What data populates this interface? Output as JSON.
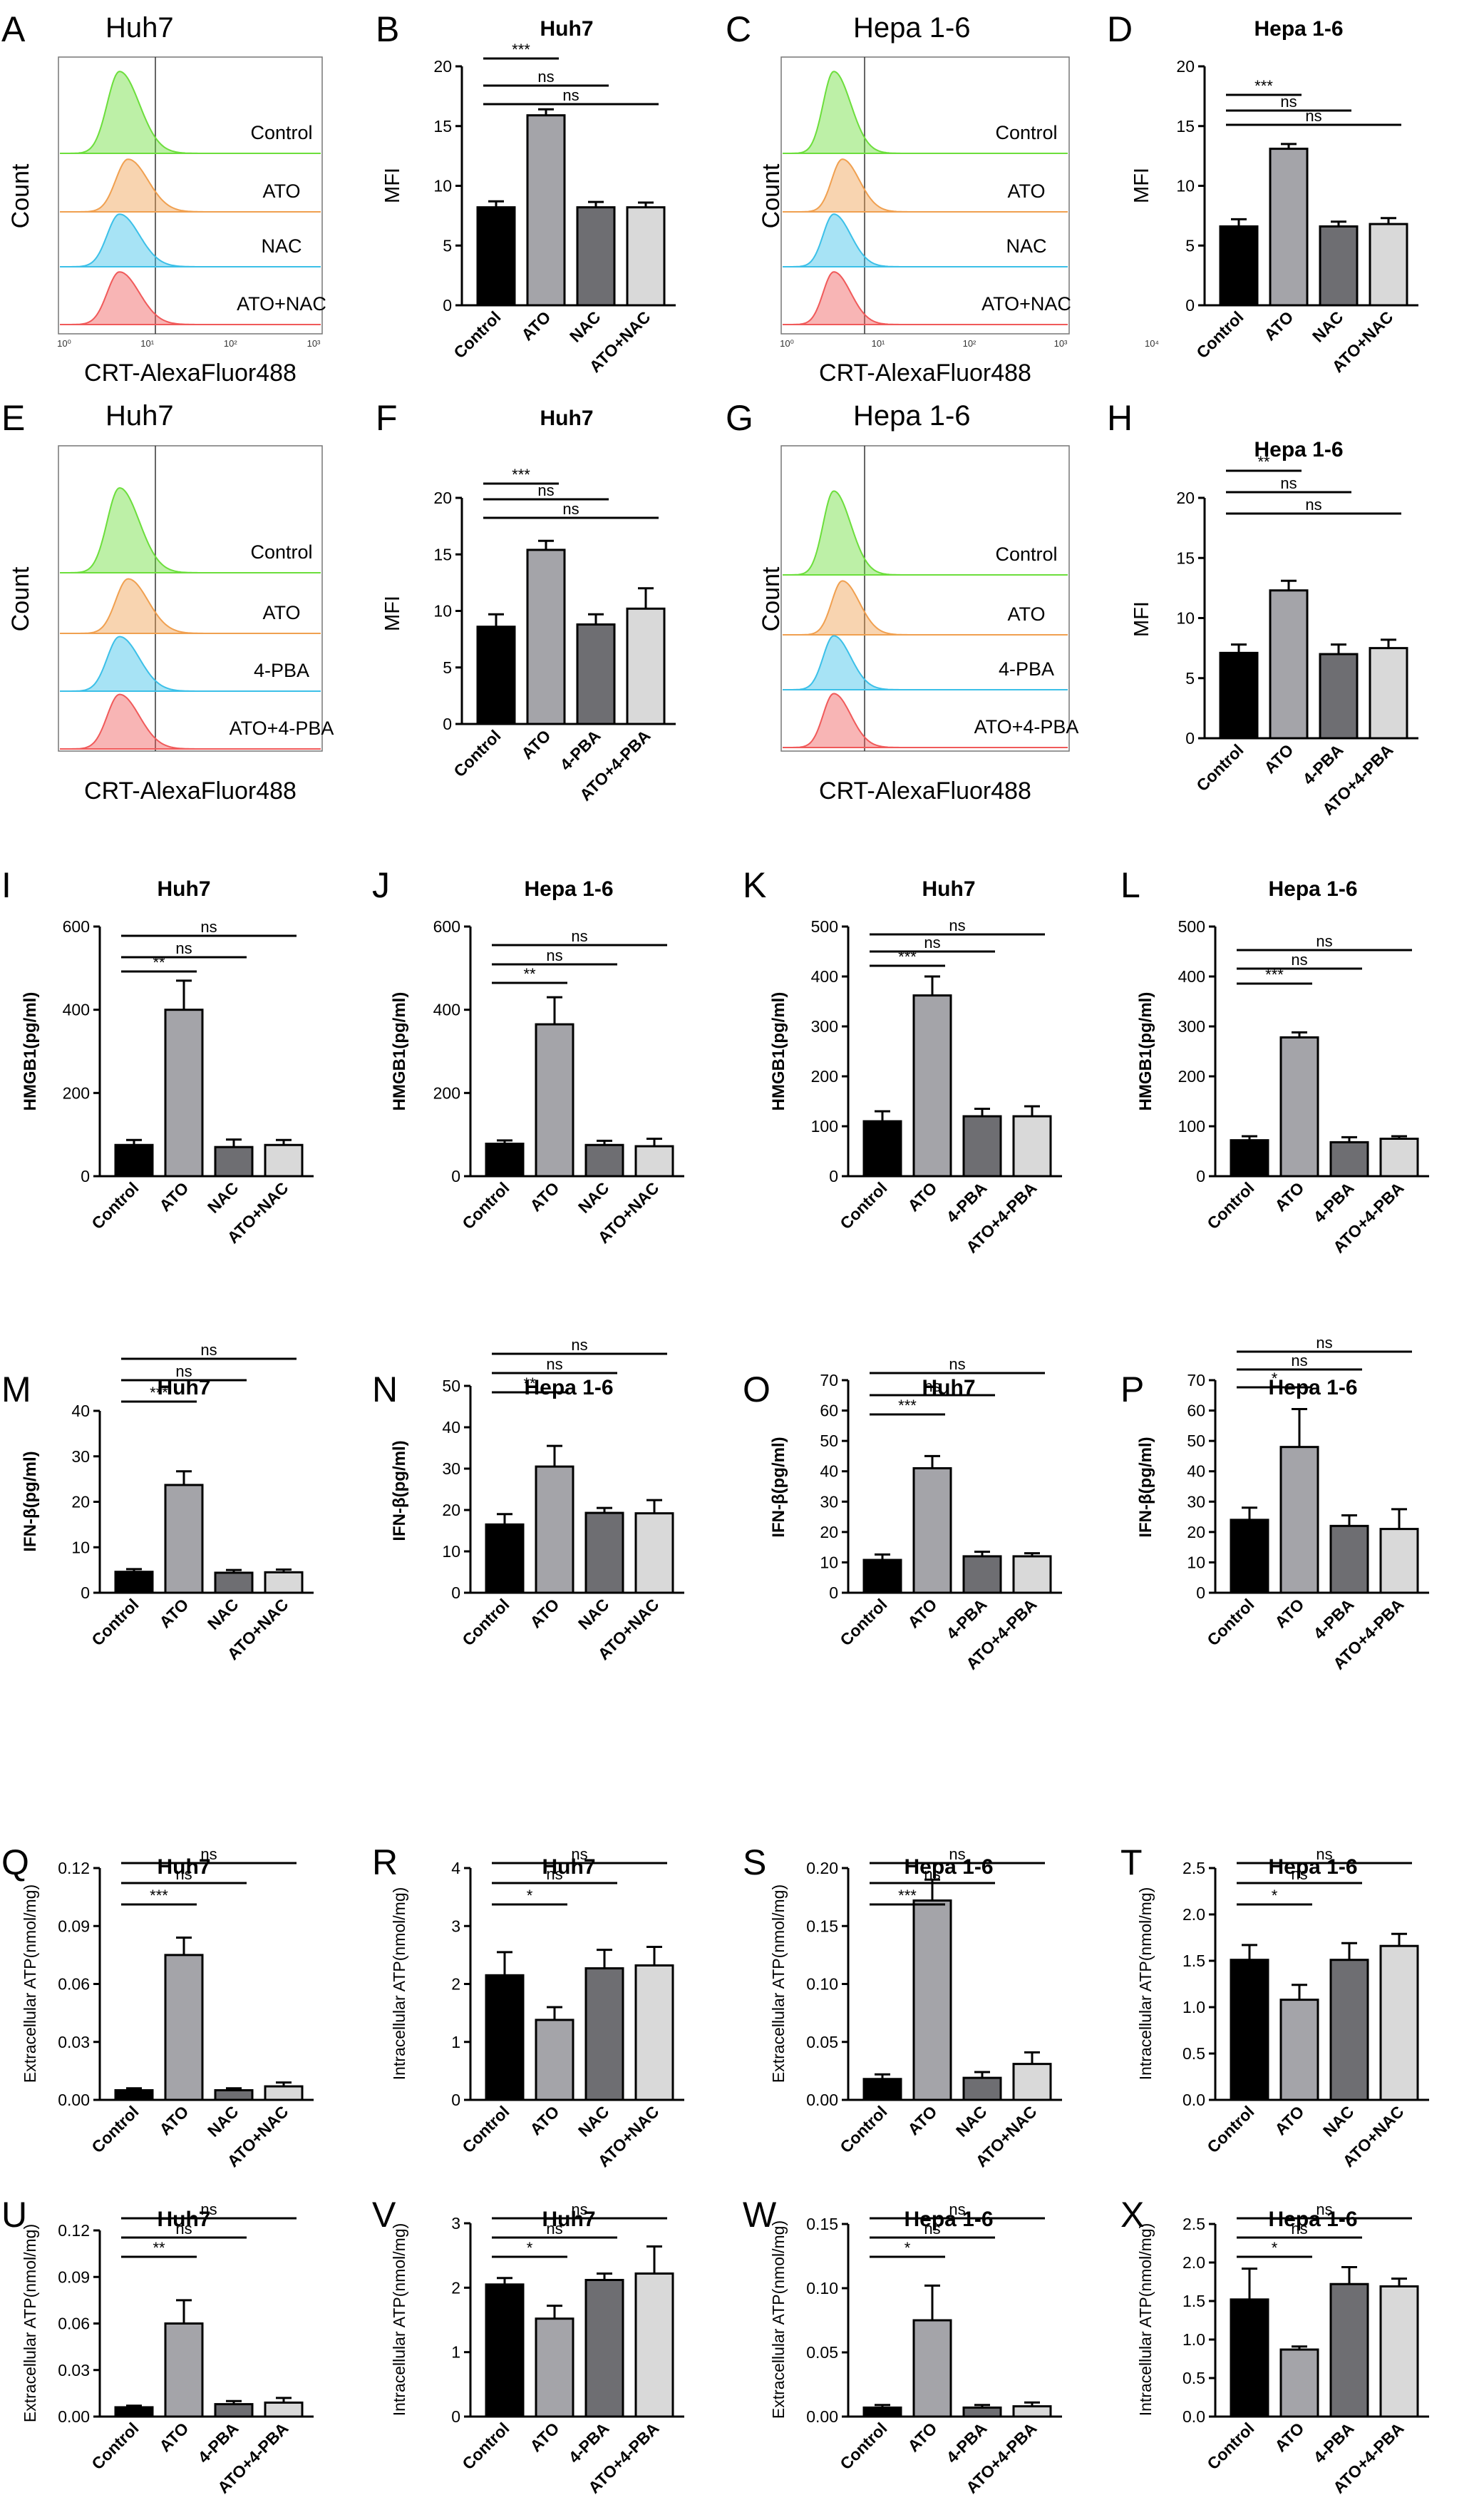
{
  "chart_data": [
    {
      "panel": "A",
      "type": "histogram",
      "title": "Huh7",
      "xlabel": "CRT-AlexaFluor488",
      "ylabel": "Count",
      "x_ticks": [
        "10⁰",
        "10¹",
        "10²",
        "10³"
      ],
      "series": [
        {
          "name": "Control",
          "color": "#6cde3c",
          "peak": 0.45
        },
        {
          "name": "ATO",
          "color": "#f0a050",
          "peak": 0.49
        },
        {
          "name": "NAC",
          "color": "#3cc0e8",
          "peak": 0.42
        },
        {
          "name": "ATO+NAC",
          "color": "#f05a5a",
          "peak": 0.45
        }
      ]
    },
    {
      "panel": "B",
      "type": "bar",
      "title": "Huh7",
      "ylabel": "MFI",
      "ylim": [
        0,
        20
      ],
      "yticks": [
        0,
        5,
        10,
        15,
        20
      ],
      "categories": [
        "Control",
        "ATO",
        "NAC",
        "ATO+NAC"
      ],
      "values": [
        8.2,
        15.9,
        8.2,
        8.2
      ],
      "errors": [
        0.5,
        0.5,
        0.45,
        0.4
      ],
      "sig": [
        {
          "label": "***",
          "to": 1
        },
        {
          "label": "ns",
          "to": 2
        },
        {
          "label": "ns",
          "to": 3
        }
      ]
    },
    {
      "panel": "C",
      "type": "histogram",
      "title": "Hepa 1-6",
      "xlabel": "CRT-AlexaFluor488",
      "ylabel": "Count",
      "x_ticks": [
        "10⁰",
        "10¹",
        "10²",
        "10³",
        "10⁴"
      ],
      "series": [
        {
          "name": "Control",
          "color": "#6cde3c",
          "peak": 0.35
        },
        {
          "name": "ATO",
          "color": "#f0a050",
          "peak": 0.4
        },
        {
          "name": "NAC",
          "color": "#3cc0e8",
          "peak": 0.35
        },
        {
          "name": "ATO+NAC",
          "color": "#f05a5a",
          "peak": 0.35
        }
      ]
    },
    {
      "panel": "D",
      "type": "bar",
      "title": "Hepa 1-6",
      "ylabel": "MFI",
      "ylim": [
        0,
        20
      ],
      "yticks": [
        0,
        5,
        10,
        15,
        20
      ],
      "categories": [
        "Control",
        "ATO",
        "NAC",
        "ATO+NAC"
      ],
      "values": [
        6.6,
        13.1,
        6.6,
        6.8
      ],
      "errors": [
        0.6,
        0.4,
        0.4,
        0.5
      ],
      "sig": [
        {
          "label": "***",
          "to": 1
        },
        {
          "label": "ns",
          "to": 2
        },
        {
          "label": "ns",
          "to": 3
        }
      ]
    },
    {
      "panel": "E",
      "type": "histogram",
      "title": "Huh7",
      "xlabel": "CRT-AlexaFluor488",
      "ylabel": "Count",
      "x_ticks": [],
      "series": [
        {
          "name": "Control",
          "color": "#6cde3c",
          "peak": 0.45
        },
        {
          "name": "ATO",
          "color": "#f0a050",
          "peak": 0.5
        },
        {
          "name": "4-PBA",
          "color": "#3cc0e8",
          "peak": 0.45
        },
        {
          "name": "ATO+4-PBA",
          "color": "#f05a5a",
          "peak": 0.45
        }
      ]
    },
    {
      "panel": "F",
      "type": "bar",
      "title": "Huh7",
      "ylabel": "MFI",
      "ylim": [
        0,
        20
      ],
      "yticks": [
        0,
        5,
        10,
        15,
        20
      ],
      "categories": [
        "Control",
        "ATO",
        "4-PBA",
        "ATO+4-PBA"
      ],
      "values": [
        8.6,
        15.4,
        8.8,
        10.2
      ],
      "errors": [
        1.1,
        0.8,
        0.9,
        1.8
      ],
      "sig": [
        {
          "label": "***",
          "to": 1
        },
        {
          "label": "ns",
          "to": 2
        },
        {
          "label": "ns",
          "to": 3
        }
      ]
    },
    {
      "panel": "G",
      "type": "histogram",
      "title": "Hepa 1-6",
      "xlabel": "CRT-AlexaFluor488",
      "ylabel": "Count",
      "x_ticks": [],
      "series": [
        {
          "name": "Control",
          "color": "#6cde3c",
          "peak": 0.42
        },
        {
          "name": "ATO",
          "color": "#f0a050",
          "peak": 0.48
        },
        {
          "name": "4-PBA",
          "color": "#3cc0e8",
          "peak": 0.42
        },
        {
          "name": "ATO+4-PBA",
          "color": "#f05a5a",
          "peak": 0.42
        }
      ]
    },
    {
      "panel": "H",
      "type": "bar",
      "title": "Hepa 1-6",
      "ylabel": "MFI",
      "ylim": [
        0,
        20
      ],
      "yticks": [
        0,
        5,
        10,
        15,
        20
      ],
      "categories": [
        "Control",
        "ATO",
        "4-PBA",
        "ATO+4-PBA"
      ],
      "values": [
        7.1,
        12.3,
        7.0,
        7.5
      ],
      "errors": [
        0.7,
        0.8,
        0.8,
        0.7
      ],
      "sig": [
        {
          "label": "**",
          "to": 1
        },
        {
          "label": "ns",
          "to": 2
        },
        {
          "label": "ns",
          "to": 3
        }
      ]
    },
    {
      "panel": "I",
      "type": "bar",
      "title": "Huh7",
      "ylabel": "HMGB1(pg/ml)",
      "ylim": [
        0,
        600
      ],
      "yticks": [
        0,
        200,
        400,
        600
      ],
      "categories": [
        "Control",
        "ATO",
        "NAC",
        "ATO+NAC"
      ],
      "values": [
        75,
        400,
        70,
        75
      ],
      "errors": [
        12,
        70,
        18,
        12
      ],
      "sig": [
        {
          "label": "**",
          "to": 1
        },
        {
          "label": "ns",
          "to": 2
        },
        {
          "label": "ns",
          "to": 3
        }
      ]
    },
    {
      "panel": "J",
      "type": "bar",
      "title": "Hepa 1-6",
      "ylabel": "HMGB1(pg/ml)",
      "ylim": [
        0,
        600
      ],
      "yticks": [
        0,
        200,
        400,
        600
      ],
      "categories": [
        "Control",
        "ATO",
        "NAC",
        "ATO+NAC"
      ],
      "values": [
        78,
        365,
        75,
        72
      ],
      "errors": [
        8,
        65,
        10,
        18
      ],
      "sig": [
        {
          "label": "**",
          "to": 1
        },
        {
          "label": "ns",
          "to": 2
        },
        {
          "label": "ns",
          "to": 3
        }
      ]
    },
    {
      "panel": "K",
      "type": "bar",
      "title": "Huh7",
      "ylabel": "HMGB1(pg/ml)",
      "ylim": [
        0,
        500
      ],
      "yticks": [
        0,
        100,
        200,
        300,
        400,
        500
      ],
      "categories": [
        "Control",
        "ATO",
        "4-PBA",
        "ATO+4-PBA"
      ],
      "values": [
        110,
        362,
        120,
        120
      ],
      "errors": [
        20,
        38,
        15,
        20
      ],
      "sig": [
        {
          "label": "***",
          "to": 1
        },
        {
          "label": "ns",
          "to": 2
        },
        {
          "label": "ns",
          "to": 3
        }
      ]
    },
    {
      "panel": "L",
      "type": "bar",
      "title": "Hepa 1-6",
      "ylabel": "HMGB1(pg/ml)",
      "ylim": [
        0,
        500
      ],
      "yticks": [
        0,
        100,
        200,
        300,
        400,
        500
      ],
      "categories": [
        "Control",
        "ATO",
        "4-PBA",
        "ATO+4-PBA"
      ],
      "values": [
        72,
        278,
        68,
        75
      ],
      "errors": [
        8,
        10,
        10,
        5
      ],
      "sig": [
        {
          "label": "***",
          "to": 1
        },
        {
          "label": "ns",
          "to": 2
        },
        {
          "label": "ns",
          "to": 3
        }
      ]
    },
    {
      "panel": "M",
      "type": "bar",
      "title": "Huh7",
      "ylabel": "IFN-β(pg/ml)",
      "ylim": [
        0,
        40
      ],
      "yticks": [
        0,
        10,
        20,
        30,
        40
      ],
      "categories": [
        "Control",
        "ATO",
        "NAC",
        "ATO+NAC"
      ],
      "values": [
        4.6,
        23.7,
        4.4,
        4.5
      ],
      "errors": [
        0.6,
        3.0,
        0.6,
        0.6
      ],
      "sig": [
        {
          "label": "***",
          "to": 1
        },
        {
          "label": "ns",
          "to": 2
        },
        {
          "label": "ns",
          "to": 3
        }
      ]
    },
    {
      "panel": "N",
      "type": "bar",
      "title": "Hepa 1-6",
      "ylabel": "IFN-β(pg/ml)",
      "ylim": [
        0,
        50
      ],
      "yticks": [
        0,
        10,
        20,
        30,
        40,
        50
      ],
      "categories": [
        "Control",
        "ATO",
        "NAC",
        "ATO+NAC"
      ],
      "values": [
        16.5,
        30.5,
        19.3,
        19.2
      ],
      "errors": [
        2.5,
        5.0,
        1.2,
        3.2
      ],
      "sig": [
        {
          "label": "**",
          "to": 1
        },
        {
          "label": "ns",
          "to": 2
        },
        {
          "label": "ns",
          "to": 3
        }
      ]
    },
    {
      "panel": "O",
      "type": "bar",
      "title": "Huh7",
      "ylabel": "IFN-β(pg/ml)",
      "ylim": [
        0,
        70
      ],
      "yticks": [
        0,
        10,
        20,
        30,
        40,
        50,
        60,
        70
      ],
      "categories": [
        "Control",
        "ATO",
        "4-PBA",
        "ATO+4-PBA"
      ],
      "values": [
        10.8,
        41.0,
        12.0,
        12.0
      ],
      "errors": [
        1.8,
        4.0,
        1.5,
        1.0
      ],
      "sig": [
        {
          "label": "***",
          "to": 1
        },
        {
          "label": "ns",
          "to": 2
        },
        {
          "label": "ns",
          "to": 3
        }
      ]
    },
    {
      "panel": "P",
      "type": "bar",
      "title": "Hepa 1-6",
      "ylabel": "IFN-β(pg/ml)",
      "ylim": [
        0,
        70
      ],
      "yticks": [
        0,
        10,
        20,
        30,
        40,
        50,
        60,
        70
      ],
      "categories": [
        "Control",
        "ATO",
        "4-PBA",
        "ATO+4-PBA"
      ],
      "values": [
        24.0,
        48.0,
        22.0,
        21.0
      ],
      "errors": [
        4.0,
        12.5,
        3.5,
        6.5
      ],
      "sig": [
        {
          "label": "*",
          "to": 1
        },
        {
          "label": "ns",
          "to": 2
        },
        {
          "label": "ns",
          "to": 3
        }
      ]
    },
    {
      "panel": "Q",
      "type": "bar",
      "title": "Huh7",
      "ylabel": "Extracellular ATP(nmol/mg)",
      "ylim": [
        0,
        0.12
      ],
      "yticks": [
        "0.00",
        "0.03",
        "0.06",
        "0.09",
        "0.12"
      ],
      "categories": [
        "Control",
        "ATO",
        "NAC",
        "ATO+NAC"
      ],
      "values": [
        0.005,
        0.075,
        0.005,
        0.007
      ],
      "errors": [
        0.001,
        0.009,
        0.001,
        0.002
      ],
      "sig": [
        {
          "label": "***",
          "to": 1
        },
        {
          "label": "ns",
          "to": 2
        },
        {
          "label": "ns",
          "to": 3
        }
      ]
    },
    {
      "panel": "R",
      "type": "bar",
      "title": "Huh7",
      "ylabel": "Intracellular ATP(nmol/mg)",
      "ylim": [
        0,
        4
      ],
      "yticks": [
        0,
        1,
        2,
        3,
        4
      ],
      "categories": [
        "Control",
        "ATO",
        "NAC",
        "ATO+NAC"
      ],
      "values": [
        2.15,
        1.38,
        2.27,
        2.32
      ],
      "errors": [
        0.4,
        0.22,
        0.32,
        0.32
      ],
      "sig": [
        {
          "label": "*",
          "to": 1
        },
        {
          "label": "ns",
          "to": 2
        },
        {
          "label": "ns",
          "to": 3
        }
      ]
    },
    {
      "panel": "S",
      "type": "bar",
      "title": "Hepa 1-6",
      "ylabel": "Extracellular ATP(nmol/mg)",
      "ylim": [
        0,
        0.2
      ],
      "yticks": [
        "0.00",
        "0.05",
        "0.10",
        "0.15",
        "0.20"
      ],
      "categories": [
        "Control",
        "ATO",
        "NAC",
        "ATO+NAC"
      ],
      "values": [
        0.018,
        0.172,
        0.019,
        0.031
      ],
      "errors": [
        0.004,
        0.018,
        0.005,
        0.01
      ],
      "sig": [
        {
          "label": "***",
          "to": 1
        },
        {
          "label": "ns",
          "to": 2
        },
        {
          "label": "ns",
          "to": 3
        }
      ]
    },
    {
      "panel": "T",
      "type": "bar",
      "title": "Hepa 1-6",
      "ylabel": "Intracellular ATP(nmol/mg)",
      "ylim": [
        0,
        2.5
      ],
      "yticks": [
        "0.0",
        "0.5",
        "1.0",
        "1.5",
        "2.0",
        "2.5"
      ],
      "categories": [
        "Control",
        "ATO",
        "NAC",
        "ATO+NAC"
      ],
      "values": [
        1.51,
        1.08,
        1.51,
        1.66
      ],
      "errors": [
        0.16,
        0.16,
        0.18,
        0.13
      ],
      "sig": [
        {
          "label": "*",
          "to": 1
        },
        {
          "label": "ns",
          "to": 2
        },
        {
          "label": "ns",
          "to": 3
        }
      ]
    },
    {
      "panel": "U",
      "type": "bar",
      "title": "Huh7",
      "ylabel": "Extracellular ATP(nmol/mg)",
      "ylim": [
        0,
        0.12
      ],
      "yticks": [
        "0.00",
        "0.03",
        "0.06",
        "0.09",
        "0.12"
      ],
      "categories": [
        "Control",
        "ATO",
        "4-PBA",
        "ATO+4-PBA"
      ],
      "values": [
        0.006,
        0.06,
        0.008,
        0.009
      ],
      "errors": [
        0.001,
        0.015,
        0.002,
        0.003
      ],
      "sig": [
        {
          "label": "**",
          "to": 1
        },
        {
          "label": "ns",
          "to": 2
        },
        {
          "label": "ns",
          "to": 3
        }
      ]
    },
    {
      "panel": "V",
      "type": "bar",
      "title": "Huh7",
      "ylabel": "Intracellular ATP(nmol/mg)",
      "ylim": [
        0,
        3
      ],
      "yticks": [
        0,
        1,
        2,
        3
      ],
      "categories": [
        "Control",
        "ATO",
        "4-PBA",
        "ATO+4-PBA"
      ],
      "values": [
        2.05,
        1.52,
        2.12,
        2.22
      ],
      "errors": [
        0.1,
        0.2,
        0.1,
        0.42
      ],
      "sig": [
        {
          "label": "*",
          "to": 1
        },
        {
          "label": "ns",
          "to": 2
        },
        {
          "label": "ns",
          "to": 3
        }
      ]
    },
    {
      "panel": "W",
      "type": "bar",
      "title": "Hepa 1-6",
      "ylabel": "Extracellular ATP(nmol/mg)",
      "ylim": [
        0,
        0.15
      ],
      "yticks": [
        "0.00",
        "0.05",
        "0.10",
        "0.15"
      ],
      "categories": [
        "Control",
        "ATO",
        "4-PBA",
        "ATO+4-PBA"
      ],
      "values": [
        0.007,
        0.075,
        0.007,
        0.008
      ],
      "errors": [
        0.002,
        0.027,
        0.002,
        0.003
      ],
      "sig": [
        {
          "label": "*",
          "to": 1
        },
        {
          "label": "ns",
          "to": 2
        },
        {
          "label": "ns",
          "to": 3
        }
      ]
    },
    {
      "panel": "X",
      "type": "bar",
      "title": "Hepa 1-6",
      "ylabel": "Intracellular ATP(nmol/mg)",
      "ylim": [
        0,
        2.5
      ],
      "yticks": [
        "0.0",
        "0.5",
        "1.0",
        "1.5",
        "2.0",
        "2.5"
      ],
      "categories": [
        "Control",
        "ATO",
        "4-PBA",
        "ATO+4-PBA"
      ],
      "values": [
        1.52,
        0.87,
        1.72,
        1.69
      ],
      "errors": [
        0.4,
        0.04,
        0.22,
        0.1
      ],
      "sig": [
        {
          "label": "*",
          "to": 1
        },
        {
          "label": "ns",
          "to": 2
        },
        {
          "label": "ns",
          "to": 3
        }
      ]
    }
  ],
  "colors": {
    "bar_fills": [
      "#000000",
      "#a4a4a9",
      "#6e6e72",
      "#d9d9d9"
    ]
  }
}
